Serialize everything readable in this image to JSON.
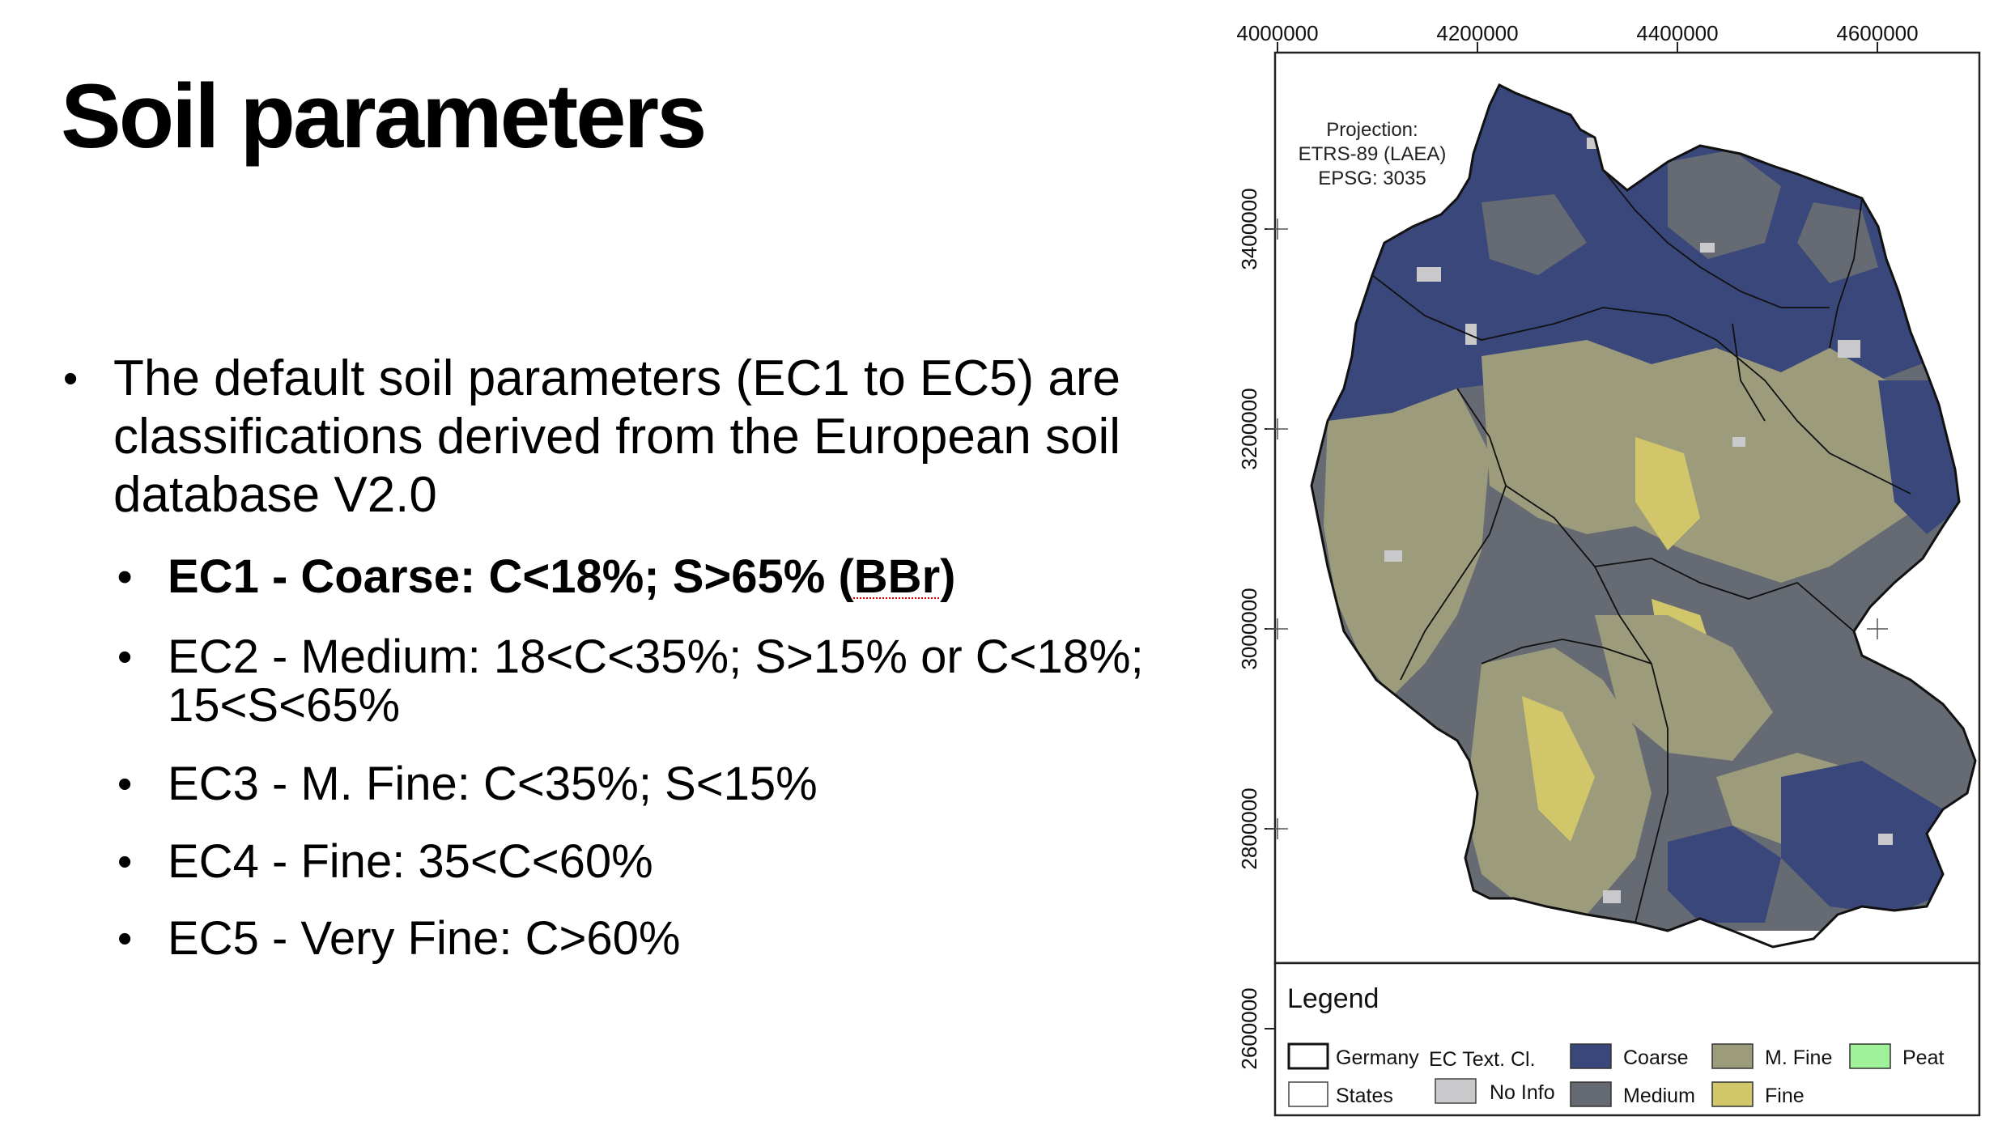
{
  "slide": {
    "title": "Soil parameters",
    "bullet_main": "The default soil parameters (EC1 to EC5) are classifications derived from the European soil database V2.0",
    "sub_bullets": [
      {
        "prefix": "EC1 - Coarse: C<18%; S>65% (",
        "flagged": "BBr",
        "suffix": ")",
        "bold": true
      },
      {
        "text": "EC2 - Medium: 18<C<35%; S>15% or C<18%; 15<S<65%",
        "bold": false
      },
      {
        "text": "EC3 - M. Fine: C<35%; S<15%",
        "bold": false
      },
      {
        "text": "EC4 - Fine: 35<C<60%",
        "bold": false
      },
      {
        "text": "EC5 - Very Fine: C>60%",
        "bold": false
      }
    ]
  },
  "map": {
    "x_ticks": [
      "4000000",
      "4200000",
      "4400000",
      "4600000"
    ],
    "y_ticks": [
      "3400000",
      "3200000",
      "3000000",
      "2800000",
      "2600000"
    ],
    "projection": [
      "Projection:",
      "ETRS-89 (LAEA)",
      "EPSG: 3035"
    ],
    "legend": {
      "title": "Legend",
      "germany_label": "Germany",
      "states_label": "States",
      "ec_header": "EC Text. Cl.",
      "items": [
        {
          "label": "No Info",
          "color": "#c9c9cc"
        },
        {
          "label": "Coarse",
          "color": "#39477a"
        },
        {
          "label": "Medium",
          "color": "#666a72"
        },
        {
          "label": "M. Fine",
          "color": "#9c9b7c"
        },
        {
          "label": "Fine",
          "color": "#d2c66a"
        },
        {
          "label": "Peat",
          "color": "#9ff29a"
        }
      ]
    }
  }
}
